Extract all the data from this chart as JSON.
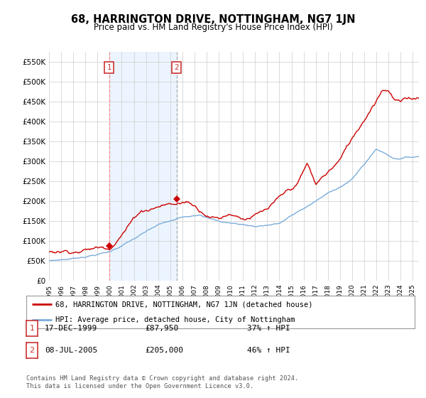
{
  "title": "68, HARRINGTON DRIVE, NOTTINGHAM, NG7 1JN",
  "subtitle": "Price paid vs. HM Land Registry's House Price Index (HPI)",
  "ylabel_ticks": [
    "£0",
    "£50K",
    "£100K",
    "£150K",
    "£200K",
    "£250K",
    "£300K",
    "£350K",
    "£400K",
    "£450K",
    "£500K",
    "£550K"
  ],
  "ytick_values": [
    0,
    50000,
    100000,
    150000,
    200000,
    250000,
    300000,
    350000,
    400000,
    450000,
    500000,
    550000
  ],
  "ylim": [
    0,
    575000
  ],
  "sale1": {
    "date_num": 1999.96,
    "price": 87950,
    "label": "1",
    "date_str": "17-DEC-1999",
    "price_str": "£87,950",
    "hpi_str": "37% ↑ HPI"
  },
  "sale2": {
    "date_num": 2005.52,
    "price": 205000,
    "label": "2",
    "date_str": "08-JUL-2005",
    "price_str": "£205,000",
    "hpi_str": "46% ↑ HPI"
  },
  "legend_red": "68, HARRINGTON DRIVE, NOTTINGHAM, NG7 1JN (detached house)",
  "legend_blue": "HPI: Average price, detached house, City of Nottingham",
  "footer": "Contains HM Land Registry data © Crown copyright and database right 2024.\nThis data is licensed under the Open Government Licence v3.0.",
  "background_color": "#ffffff",
  "grid_color": "#cccccc",
  "red_color": "#cc0000",
  "blue_color": "#7aaddb",
  "vline1_color": "#ff8888",
  "vline2_color": "#aaaaaa",
  "shade_color": "#ddeeff",
  "box_color": "#cc3333",
  "xmin": 1995,
  "xmax": 2025.5
}
